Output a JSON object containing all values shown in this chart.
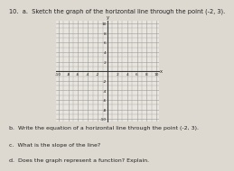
{
  "title": "10.  a.  Sketch the graph of the horizontal line through the point (-2, 3).",
  "part_b": "b.  Write the equation of a horizontal line through the point (-2, 3).",
  "part_c": "c.  What is the slope of the line?",
  "part_d": "d.  Does the graph represent a function? Explain.",
  "xlim": [
    -10,
    10
  ],
  "ylim": [
    -10,
    10
  ],
  "grid_color": "#999999",
  "axis_color": "#333333",
  "bg_color": "#e8e4de",
  "fig_bg": "#ddd8d0",
  "text_color": "#222222",
  "title_fontsize": 4.8,
  "label_fontsize": 4.5,
  "tick_fontsize": 3.2
}
